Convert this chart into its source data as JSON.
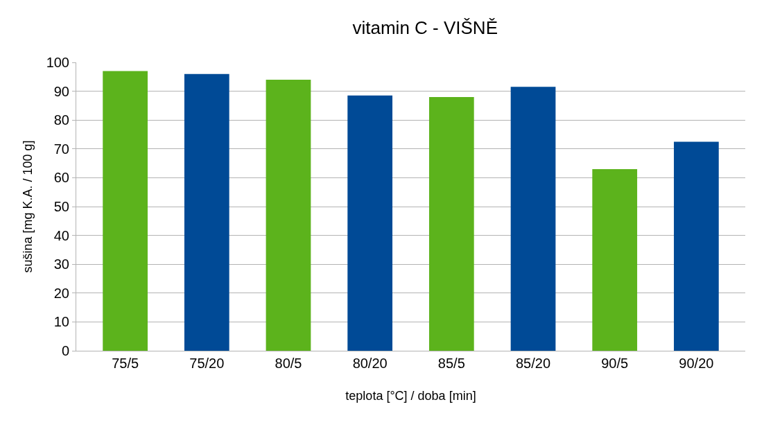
{
  "chart_data": {
    "type": "bar",
    "title": "vitamin C - VIŠNĚ",
    "xlabel": "teplota [°C] / doba [min]",
    "ylabel": "sušina [mg K.A. / 100 g]",
    "categories": [
      "75/5",
      "75/20",
      "80/5",
      "80/20",
      "85/5",
      "85/20",
      "90/5",
      "90/20"
    ],
    "values": [
      97,
      96,
      94,
      88.5,
      88,
      91.5,
      63,
      72.5
    ],
    "colors": [
      "#5cb31c",
      "#004a96",
      "#5cb31c",
      "#004a96",
      "#5cb31c",
      "#004a96",
      "#5cb31c",
      "#004a96"
    ],
    "ylim": [
      0,
      100
    ],
    "yticks": [
      0,
      10,
      20,
      30,
      40,
      50,
      60,
      70,
      80,
      90,
      100
    ],
    "grid": "y"
  }
}
